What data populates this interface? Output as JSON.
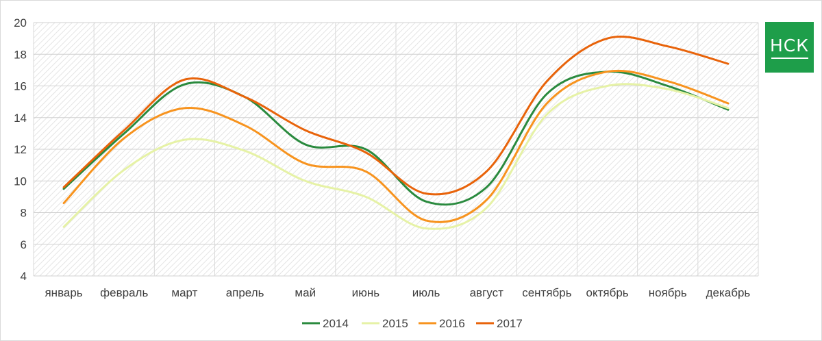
{
  "logo": {
    "text": "НСК",
    "color": "#1e9e4a"
  },
  "chart_data": {
    "type": "line",
    "smooth": true,
    "title": "",
    "xlabel": "",
    "ylabel": "",
    "ylim": [
      4,
      20
    ],
    "yticks": [
      4,
      6,
      8,
      10,
      12,
      14,
      16,
      18,
      20
    ],
    "grid": true,
    "legend": "bottom",
    "categories": [
      "январь",
      "февраль",
      "март",
      "апрель",
      "май",
      "июнь",
      "июль",
      "август",
      "сентябрь",
      "октябрь",
      "ноябрь",
      "декабрь"
    ],
    "series": [
      {
        "name": "2014",
        "color": "#2a8a3e",
        "values": [
          9.5,
          13.0,
          16.1,
          15.3,
          12.3,
          12.0,
          8.7,
          9.6,
          15.5,
          16.9,
          16.0,
          14.5
        ]
      },
      {
        "name": "2015",
        "color": "#e6f2a6",
        "values": [
          7.1,
          10.7,
          12.6,
          11.9,
          10.0,
          9.0,
          7.0,
          8.3,
          14.2,
          16.0,
          15.8,
          14.6
        ]
      },
      {
        "name": "2016",
        "color": "#f7931e",
        "values": [
          8.6,
          12.7,
          14.6,
          13.5,
          11.1,
          10.6,
          7.5,
          8.8,
          14.9,
          16.9,
          16.3,
          14.9
        ]
      },
      {
        "name": "2017",
        "color": "#e8630a",
        "values": [
          9.6,
          13.2,
          16.4,
          15.3,
          13.2,
          11.8,
          9.2,
          10.6,
          16.3,
          19.0,
          18.5,
          17.4
        ]
      }
    ]
  }
}
